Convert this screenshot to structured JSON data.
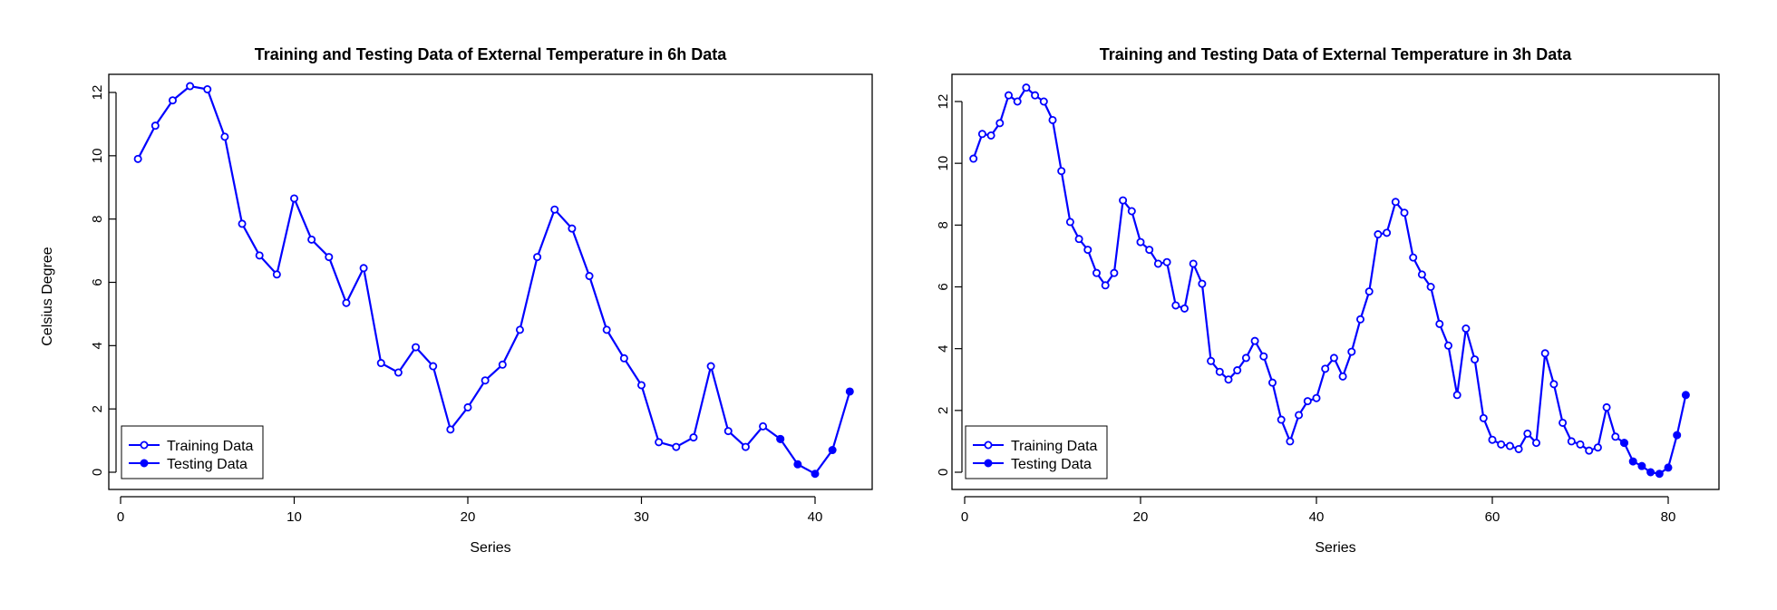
{
  "colors": {
    "series": "#0000ff",
    "axis": "#000000",
    "background": "#ffffff"
  },
  "chart_data": [
    {
      "type": "line",
      "title": "Training and Testing Data of External Temperature in 6h Data",
      "xlabel": "Series",
      "ylabel": "Celsius Degree",
      "xlim": [
        0,
        42
      ],
      "ylim": [
        0,
        12
      ],
      "xticks": [
        0,
        10,
        20,
        30,
        40
      ],
      "yticks": [
        0,
        2,
        4,
        6,
        8,
        10,
        12
      ],
      "grid": false,
      "legend_position": "bottom-left",
      "series": [
        {
          "name": "Training Data",
          "marker": "open-circle",
          "x": [
            1,
            2,
            3,
            4,
            5,
            6,
            7,
            8,
            9,
            10,
            11,
            12,
            13,
            14,
            15,
            16,
            17,
            18,
            19,
            20,
            21,
            22,
            23,
            24,
            25,
            26,
            27,
            28,
            29,
            30,
            31,
            32,
            33,
            34,
            35,
            36,
            37,
            38
          ],
          "y": [
            9.9,
            10.95,
            11.75,
            12.2,
            12.1,
            10.6,
            7.85,
            6.85,
            6.25,
            8.65,
            7.35,
            6.8,
            5.35,
            6.45,
            3.45,
            3.15,
            3.95,
            3.35,
            1.35,
            2.05,
            2.9,
            3.4,
            4.5,
            6.8,
            8.3,
            7.7,
            6.2,
            4.5,
            3.6,
            2.75,
            0.95,
            0.8,
            1.1,
            3.35,
            1.3,
            0.8,
            1.45,
            1.05
          ]
        },
        {
          "name": "Testing Data",
          "marker": "filled-circle",
          "x": [
            38,
            39,
            40,
            41,
            42
          ],
          "y": [
            1.05,
            0.25,
            -0.05,
            0.7,
            2.55
          ]
        }
      ]
    },
    {
      "type": "line",
      "title": "Training and Testing Data of External Temperature in 3h Data",
      "xlabel": "Series",
      "ylabel": "",
      "xlim": [
        0,
        82
      ],
      "ylim": [
        0,
        12
      ],
      "xticks": [
        0,
        20,
        40,
        60,
        80
      ],
      "yticks": [
        0,
        2,
        4,
        6,
        8,
        10,
        12
      ],
      "grid": false,
      "legend_position": "bottom-left",
      "series": [
        {
          "name": "Training Data",
          "marker": "open-circle",
          "x": [
            1,
            2,
            3,
            4,
            5,
            6,
            7,
            8,
            9,
            10,
            11,
            12,
            13,
            14,
            15,
            16,
            17,
            18,
            19,
            20,
            21,
            22,
            23,
            24,
            25,
            26,
            27,
            28,
            29,
            30,
            31,
            32,
            33,
            34,
            35,
            36,
            37,
            38,
            39,
            40,
            41,
            42,
            43,
            44,
            45,
            46,
            47,
            48,
            49,
            50,
            51,
            52,
            53,
            54,
            55,
            56,
            57,
            58,
            59,
            60,
            61,
            62,
            63,
            64,
            65,
            66,
            67,
            68,
            69,
            70,
            71,
            72,
            73,
            74,
            75
          ],
          "y": [
            10.15,
            10.95,
            10.9,
            11.3,
            12.2,
            12.0,
            12.45,
            12.2,
            12.0,
            11.4,
            9.75,
            8.1,
            7.55,
            7.2,
            6.45,
            6.05,
            6.45,
            8.8,
            8.45,
            7.45,
            7.2,
            6.75,
            6.8,
            5.4,
            5.3,
            6.75,
            6.1,
            3.6,
            3.25,
            3.0,
            3.3,
            3.7,
            4.25,
            3.75,
            2.9,
            1.7,
            1.0,
            1.85,
            2.3,
            2.4,
            3.35,
            3.7,
            3.1,
            3.9,
            4.95,
            5.85,
            7.7,
            7.75,
            8.75,
            8.4,
            6.95,
            6.4,
            6.0,
            4.8,
            4.1,
            2.5,
            4.65,
            3.65,
            1.75,
            1.05,
            0.9,
            0.85,
            0.75,
            1.25,
            0.95,
            3.85,
            2.85,
            1.6,
            1.0,
            0.9,
            0.7,
            0.8,
            2.1,
            1.15,
            0.95
          ]
        },
        {
          "name": "Testing Data",
          "marker": "filled-circle",
          "x": [
            75,
            76,
            77,
            78,
            79,
            80,
            81,
            82
          ],
          "y": [
            0.95,
            0.35,
            0.2,
            0.0,
            -0.05,
            0.15,
            1.2,
            2.5
          ]
        }
      ]
    }
  ]
}
